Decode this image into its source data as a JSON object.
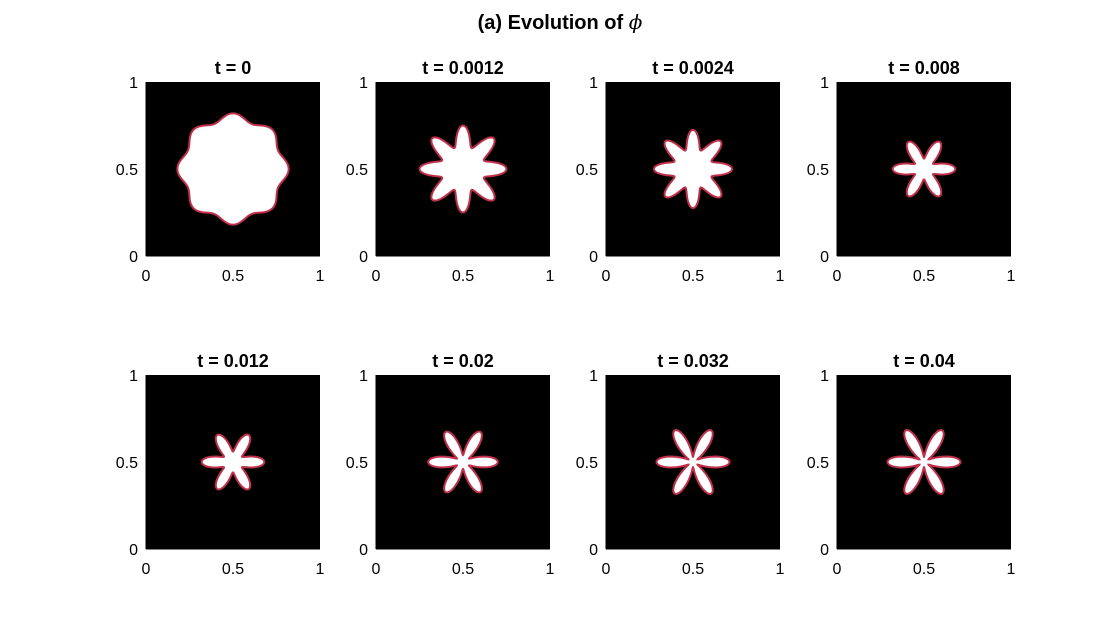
{
  "figure": {
    "title_prefix": "(a) Evolution of ",
    "title_symbol": "ϕ"
  },
  "chart_data": {
    "type": "heatmap",
    "field": "ϕ",
    "colors": {
      "background": "#000000",
      "interior": "#ffffff",
      "interface": "#c0304a"
    },
    "xlim": [
      0,
      1
    ],
    "ylim": [
      0,
      1
    ],
    "x_ticks": [
      "0",
      "0.5",
      "1"
    ],
    "y_ticks": [
      "0",
      "0.5",
      "1"
    ],
    "panels": [
      {
        "title": "t = 0",
        "t": 0,
        "shape": {
          "cx": 0.5,
          "cy": 0.5,
          "r": 0.3,
          "amp": 0.02,
          "lobes": 8,
          "rot": 0
        }
      },
      {
        "title": "t = 0.0012",
        "t": 0.0012,
        "shape": {
          "cx": 0.5,
          "cy": 0.5,
          "r": 0.19,
          "amp": 0.06,
          "lobes": 8,
          "rot": 0
        }
      },
      {
        "title": "t = 0.0024",
        "t": 0.0024,
        "shape": {
          "cx": 0.5,
          "cy": 0.5,
          "r": 0.17,
          "amp": 0.055,
          "lobes": 8,
          "rot": 0
        }
      },
      {
        "title": "t = 0.008",
        "t": 0.008,
        "shape": {
          "cx": 0.5,
          "cy": 0.5,
          "r": 0.12,
          "amp": 0.06,
          "lobes": 6,
          "rot": 0
        }
      },
      {
        "title": "t = 0.012",
        "t": 0.012,
        "shape": {
          "cx": 0.5,
          "cy": 0.5,
          "r": 0.12,
          "amp": 0.06,
          "lobes": 6,
          "rot": 0
        }
      },
      {
        "title": "t = 0.02",
        "t": 0.02,
        "shape": {
          "cx": 0.5,
          "cy": 0.5,
          "r": 0.12,
          "amp": 0.08,
          "lobes": 6,
          "rot": 0
        }
      },
      {
        "title": "t = 0.032",
        "t": 0.032,
        "shape": {
          "cx": 0.5,
          "cy": 0.5,
          "r": 0.12,
          "amp": 0.09,
          "lobes": 6,
          "rot": 0
        }
      },
      {
        "title": "t = 0.04",
        "t": 0.04,
        "shape": {
          "cx": 0.5,
          "cy": 0.5,
          "r": 0.12,
          "amp": 0.09,
          "lobes": 6,
          "rot": 0
        }
      }
    ]
  }
}
